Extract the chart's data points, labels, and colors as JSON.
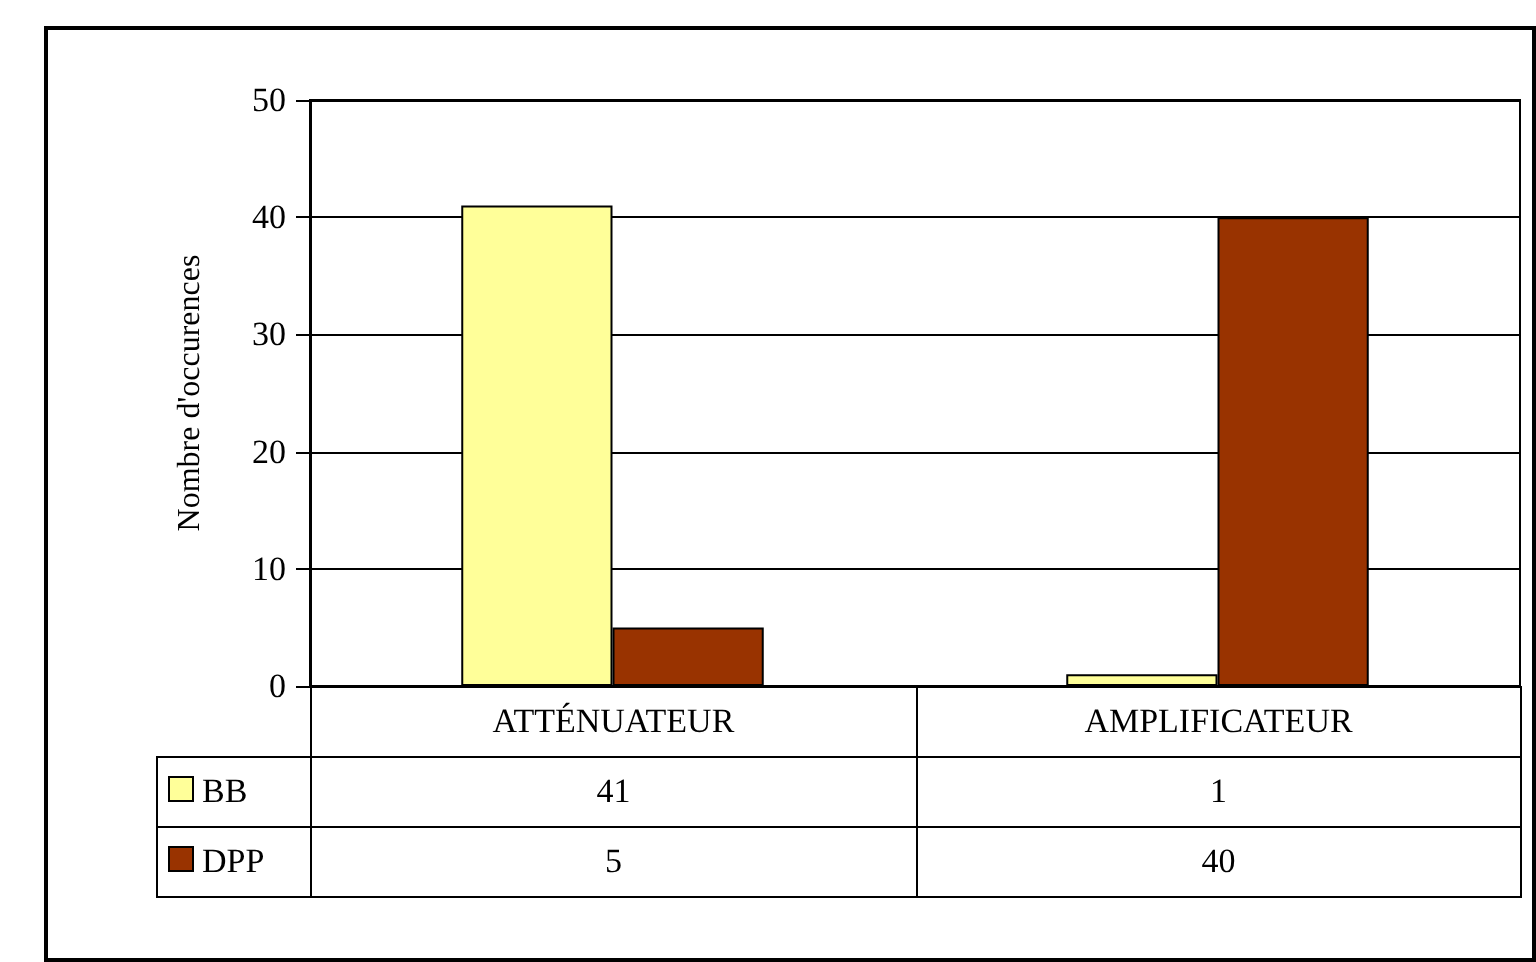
{
  "chart_data": {
    "type": "bar",
    "ylabel": "Nombre d'occurences",
    "categories": [
      "ATTÉNUATEUR",
      "AMPLIFICATEUR"
    ],
    "series": [
      {
        "name": "BB",
        "color": "#ffff99",
        "values": [
          41,
          1
        ]
      },
      {
        "name": "DPP",
        "color": "#993300",
        "values": [
          5,
          40
        ]
      }
    ],
    "ylim": [
      0,
      50
    ],
    "yticks": [
      0,
      10,
      20,
      30,
      40,
      50
    ],
    "grid": "y",
    "legend": "bottom",
    "data_labels": true
  }
}
